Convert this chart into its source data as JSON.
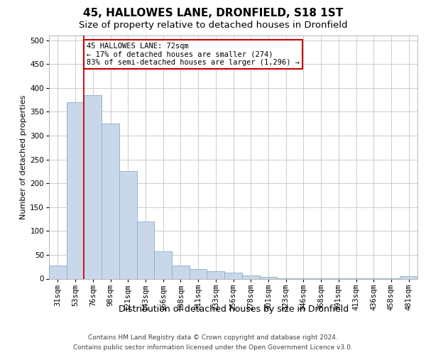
{
  "title": "45, HALLOWES LANE, DRONFIELD, S18 1ST",
  "subtitle": "Size of property relative to detached houses in Dronfield",
  "xlabel": "Distribution of detached houses by size in Dronfield",
  "ylabel": "Number of detached properties",
  "categories": [
    "31sqm",
    "53sqm",
    "76sqm",
    "98sqm",
    "121sqm",
    "143sqm",
    "166sqm",
    "188sqm",
    "211sqm",
    "233sqm",
    "256sqm",
    "278sqm",
    "301sqm",
    "323sqm",
    "346sqm",
    "368sqm",
    "391sqm",
    "413sqm",
    "436sqm",
    "458sqm",
    "481sqm"
  ],
  "values": [
    27,
    370,
    385,
    325,
    225,
    120,
    57,
    27,
    20,
    16,
    13,
    7,
    4,
    1,
    1,
    1,
    1,
    1,
    1,
    1,
    5
  ],
  "bar_color": "#c8d8ea",
  "bar_edge_color": "#88aec8",
  "bar_edge_width": 0.6,
  "property_line_color": "#cc0000",
  "annotation_text": "45 HALLOWES LANE: 72sqm\n← 17% of detached houses are smaller (274)\n83% of semi-detached houses are larger (1,296) →",
  "annotation_box_color": "#ffffff",
  "annotation_box_edge_color": "#cc0000",
  "ylim": [
    0,
    510
  ],
  "yticks": [
    0,
    50,
    100,
    150,
    200,
    250,
    300,
    350,
    400,
    450,
    500
  ],
  "grid_color": "#cccccc",
  "footnote_line1": "Contains HM Land Registry data © Crown copyright and database right 2024.",
  "footnote_line2": "Contains public sector information licensed under the Open Government Licence v3.0.",
  "title_fontsize": 11,
  "subtitle_fontsize": 9.5,
  "xlabel_fontsize": 9,
  "ylabel_fontsize": 8,
  "tick_fontsize": 7.5,
  "annotation_fontsize": 7.5,
  "footnote_fontsize": 6.5
}
